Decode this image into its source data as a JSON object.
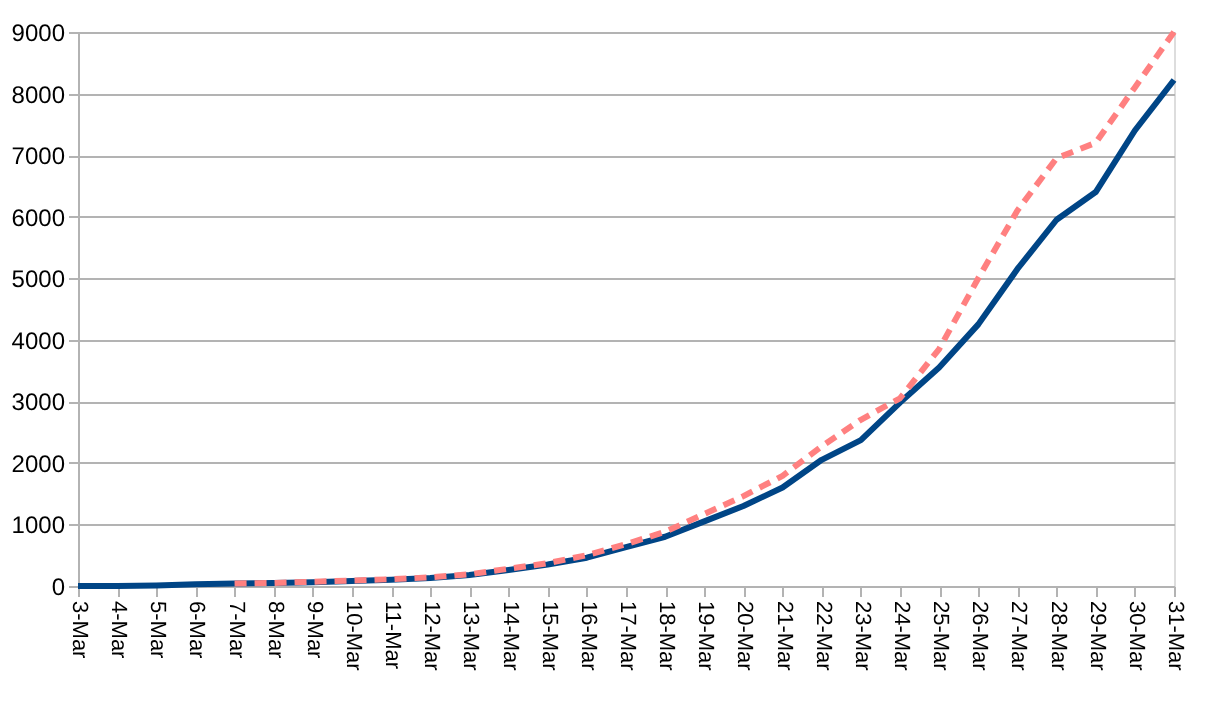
{
  "chart_data": {
    "type": "line",
    "categories": [
      "3-Mar",
      "4-Mar",
      "5-Mar",
      "6-Mar",
      "7-Mar",
      "8-Mar",
      "9-Mar",
      "10-Mar",
      "11-Mar",
      "12-Mar",
      "13-Mar",
      "14-Mar",
      "15-Mar",
      "16-Mar",
      "17-Mar",
      "18-Mar",
      "19-Mar",
      "20-Mar",
      "21-Mar",
      "22-Mar",
      "23-Mar",
      "24-Mar",
      "25-Mar",
      "26-Mar",
      "27-Mar",
      "28-Mar",
      "29-Mar",
      "30-Mar",
      "31-Mar"
    ],
    "series": [
      {
        "color": "#004586",
        "line_style": "solid",
        "values": [
          0,
          0,
          10,
          30,
          40,
          50,
          60,
          80,
          100,
          130,
          180,
          260,
          350,
          460,
          630,
          800,
          1050,
          1300,
          1600,
          2050,
          2370,
          2980,
          3550,
          4250,
          5150,
          5950,
          6400,
          7400,
          8220
        ]
      },
      {
        "color": "#ff8080",
        "line_style": "dashed",
        "values": [
          null,
          null,
          null,
          null,
          40,
          50,
          70,
          90,
          110,
          140,
          190,
          280,
          370,
          500,
          680,
          880,
          1170,
          1460,
          1790,
          2270,
          2700,
          3050,
          3850,
          5000,
          6100,
          6950,
          7200,
          8100,
          9000
        ]
      }
    ],
    "ylim": [
      0,
      9000
    ],
    "yticks": [
      0,
      1000,
      2000,
      3000,
      4000,
      5000,
      6000,
      7000,
      8000,
      9000
    ],
    "grid": "y",
    "legend": false,
    "marker": "none"
  }
}
